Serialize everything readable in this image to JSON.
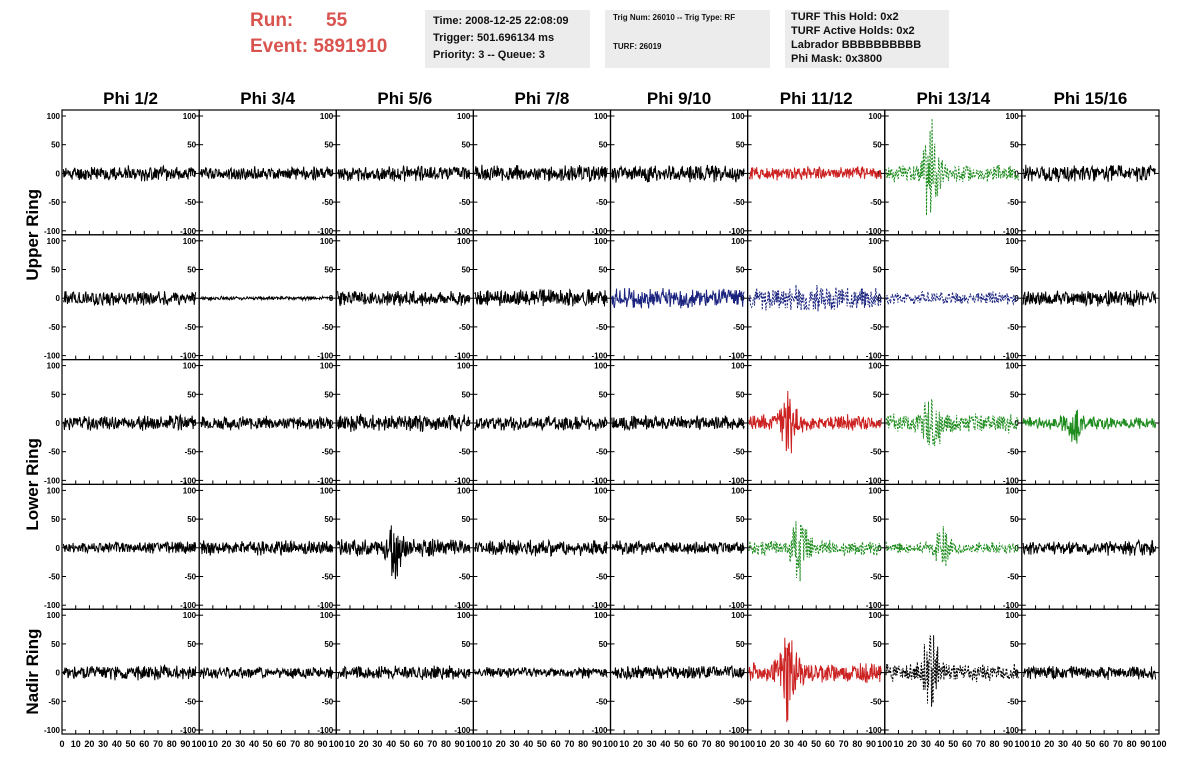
{
  "header": {
    "run_label": "Run:",
    "run_value": "55",
    "event_label": "Event:",
    "event_value": "5891910",
    "time_line": "Time: 2008-12-25 22:08:09",
    "trigger_line": "Trigger: 501.696134 ms",
    "priority_line": "Priority: 3 -- Queue: 3",
    "trig_line": "Trig Num: 26010 -- Trig Type: RF",
    "turf_line": "TURF: 26019",
    "turf_hold_line": "TURF This Hold: 0x2",
    "turf_active_line": "TURF Active Holds: 0x2",
    "labrador_line": "Labrador BBBBBBBBBB",
    "phi_mask_line": "Phi Mask: 0x3800"
  },
  "chart_data": {
    "type": "line",
    "columns": [
      "Phi 1/2",
      "Phi 3/4",
      "Phi 5/6",
      "Phi 7/8",
      "Phi 9/10",
      "Phi 11/12",
      "Phi 13/14",
      "Phi 15/16"
    ],
    "ring_labels": [
      "Upper Ring",
      "Lower Ring",
      "Nadir Ring"
    ],
    "rows_per_ring_label": [
      2,
      2,
      1
    ],
    "xlim": [
      0,
      100
    ],
    "ylim": [
      -100,
      100
    ],
    "xticks": [
      0,
      10,
      20,
      30,
      40,
      50,
      60,
      70,
      80,
      90,
      100
    ],
    "yticks": [
      -100,
      -50,
      0,
      50,
      100
    ],
    "colors": {
      "black": "#000000",
      "red": "#cc2222",
      "blue": "#1a237e",
      "green": "#1e8c1e"
    },
    "panels": [
      [
        {
          "color": "black",
          "dashed": false,
          "amp": 12,
          "peak": 0,
          "seed": 11
        },
        {
          "color": "black",
          "dashed": false,
          "amp": 11,
          "peak": 0,
          "seed": 12
        },
        {
          "color": "black",
          "dashed": false,
          "amp": 12,
          "peak": 0,
          "seed": 13
        },
        {
          "color": "black",
          "dashed": false,
          "amp": 13,
          "peak": 0,
          "seed": 14
        },
        {
          "color": "black",
          "dashed": false,
          "amp": 14,
          "peak": 0,
          "seed": 15
        },
        {
          "color": "red",
          "dashed": false,
          "amp": 11,
          "peak": 0,
          "seed": 16
        },
        {
          "color": "green",
          "dashed": true,
          "amp": 14,
          "peak": 75,
          "seed": 17
        },
        {
          "color": "black",
          "dashed": false,
          "amp": 14,
          "peak": 0,
          "seed": 18
        }
      ],
      [
        {
          "color": "black",
          "dashed": false,
          "amp": 12,
          "peak": 0,
          "seed": 21
        },
        {
          "color": "black",
          "dashed": false,
          "amp": 3,
          "peak": 0,
          "seed": 22
        },
        {
          "color": "black",
          "dashed": false,
          "amp": 13,
          "peak": 0,
          "seed": 23
        },
        {
          "color": "black",
          "dashed": false,
          "amp": 14,
          "peak": 0,
          "seed": 24
        },
        {
          "color": "blue",
          "dashed": false,
          "amp": 16,
          "peak": 0,
          "seed": 25
        },
        {
          "color": "blue",
          "dashed": true,
          "amp": 20,
          "peak": 0,
          "seed": 26
        },
        {
          "color": "blue",
          "dashed": true,
          "amp": 10,
          "peak": 0,
          "seed": 27
        },
        {
          "color": "black",
          "dashed": false,
          "amp": 13,
          "peak": 0,
          "seed": 28
        }
      ],
      [
        {
          "color": "black",
          "dashed": false,
          "amp": 12,
          "peak": 0,
          "seed": 31
        },
        {
          "color": "black",
          "dashed": false,
          "amp": 11,
          "peak": 0,
          "seed": 32
        },
        {
          "color": "black",
          "dashed": false,
          "amp": 14,
          "peak": 0,
          "seed": 33
        },
        {
          "color": "black",
          "dashed": false,
          "amp": 12,
          "peak": 0,
          "seed": 34
        },
        {
          "color": "black",
          "dashed": false,
          "amp": 12,
          "peak": 0,
          "seed": 35
        },
        {
          "color": "red",
          "dashed": false,
          "amp": 13,
          "peak": 45,
          "seed": 36
        },
        {
          "color": "green",
          "dashed": true,
          "amp": 16,
          "peak": 50,
          "seed": 37
        },
        {
          "color": "green",
          "dashed": false,
          "amp": 10,
          "peak": 25,
          "seed": 38
        }
      ],
      [
        {
          "color": "black",
          "dashed": false,
          "amp": 10,
          "peak": 0,
          "seed": 41
        },
        {
          "color": "black",
          "dashed": false,
          "amp": 12,
          "peak": 0,
          "seed": 42
        },
        {
          "color": "black",
          "dashed": false,
          "amp": 14,
          "peak": 40,
          "seed": 43
        },
        {
          "color": "black",
          "dashed": false,
          "amp": 13,
          "peak": 0,
          "seed": 44
        },
        {
          "color": "black",
          "dashed": false,
          "amp": 11,
          "peak": 0,
          "seed": 45
        },
        {
          "color": "green",
          "dashed": true,
          "amp": 12,
          "peak": 55,
          "seed": 46
        },
        {
          "color": "green",
          "dashed": true,
          "amp": 9,
          "peak": 35,
          "seed": 47
        },
        {
          "color": "black",
          "dashed": false,
          "amp": 12,
          "peak": 0,
          "seed": 48
        }
      ],
      [
        {
          "color": "black",
          "dashed": false,
          "amp": 12,
          "peak": 0,
          "seed": 51
        },
        {
          "color": "black",
          "dashed": false,
          "amp": 10,
          "peak": 0,
          "seed": 52
        },
        {
          "color": "black",
          "dashed": false,
          "amp": 11,
          "peak": 0,
          "seed": 53
        },
        {
          "color": "black",
          "dashed": false,
          "amp": 9,
          "peak": 0,
          "seed": 54
        },
        {
          "color": "black",
          "dashed": false,
          "amp": 11,
          "peak": 0,
          "seed": 55
        },
        {
          "color": "red",
          "dashed": false,
          "amp": 16,
          "peak": 70,
          "seed": 56
        },
        {
          "color": "black",
          "dashed": true,
          "amp": 14,
          "peak": 60,
          "seed": 57
        },
        {
          "color": "black",
          "dashed": false,
          "amp": 11,
          "peak": 0,
          "seed": 58
        }
      ]
    ]
  }
}
